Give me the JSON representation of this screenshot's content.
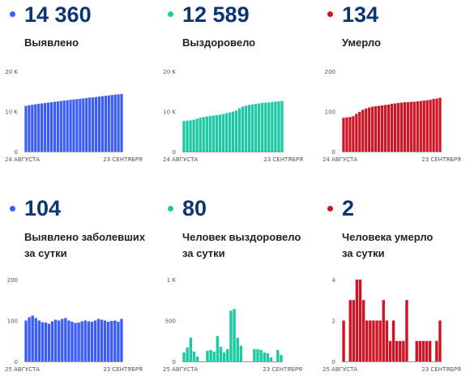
{
  "colors": {
    "blue": "#3c5df5",
    "green": "#1cc9a4",
    "red": "#cc1424",
    "title": "#0e3573",
    "axis": "#777777"
  },
  "panels": [
    {
      "value": "14 360",
      "label_lines": [
        "Выявлено"
      ]
    },
    {
      "value": "12 589",
      "label_lines": [
        "Выздоровело"
      ]
    },
    {
      "value": "134",
      "label_lines": [
        "Умерло"
      ]
    },
    {
      "value": "104",
      "label_lines": [
        "Выявлено заболевших",
        "за сутки"
      ]
    },
    {
      "value": "80",
      "label_lines": [
        "Человек выздоровело",
        "за сутки"
      ]
    },
    {
      "value": "2",
      "label_lines": [
        "Человека умерло",
        "за сутки"
      ]
    }
  ],
  "chart_data": [
    {
      "type": "bar",
      "color": "blue",
      "ymax": 20000,
      "yticks": [
        0,
        10000,
        20000
      ],
      "ytick_labels": [
        "0",
        "10 K",
        "20 K"
      ],
      "x_start": "24 АВГУСТА",
      "x_end": "23 СЕНТЯБРЯ",
      "values": [
        11400,
        11550,
        11650,
        11800,
        11900,
        12000,
        12100,
        12200,
        12300,
        12400,
        12500,
        12600,
        12700,
        12800,
        12900,
        13000,
        13050,
        13150,
        13250,
        13350,
        13450,
        13500,
        13600,
        13700,
        13800,
        13900,
        14000,
        14100,
        14200,
        14260,
        14360
      ]
    },
    {
      "type": "bar",
      "color": "green",
      "ymax": 20000,
      "yticks": [
        0,
        10000,
        20000
      ],
      "ytick_labels": [
        "0",
        "10 K",
        "20 K"
      ],
      "x_start": "24 АВГУСТА",
      "x_end": "23 СЕНТЯБРЯ",
      "values": [
        7600,
        7700,
        7800,
        7950,
        8200,
        8450,
        8600,
        8750,
        8850,
        8950,
        9050,
        9200,
        9350,
        9550,
        9750,
        9950,
        10200,
        10800,
        11200,
        11450,
        11650,
        11750,
        11900,
        12000,
        12150,
        12200,
        12250,
        12350,
        12450,
        12509,
        12589
      ]
    },
    {
      "type": "bar",
      "color": "red",
      "ymax": 200,
      "yticks": [
        0,
        100,
        200
      ],
      "ytick_labels": [
        "0",
        "100",
        "200"
      ],
      "x_start": "24 АВГУСТА",
      "x_end": "23 СЕНТЯБРЯ",
      "values": [
        84,
        85,
        86,
        88,
        94,
        99,
        104,
        107,
        110,
        112,
        113,
        114,
        115,
        116,
        117,
        119,
        120,
        121,
        122,
        123,
        123,
        124,
        124,
        125,
        126,
        127,
        128,
        129,
        131,
        132,
        134
      ]
    },
    {
      "type": "bar",
      "color": "blue",
      "ymax": 200,
      "yticks": [
        0,
        100,
        200
      ],
      "ytick_labels": [
        "0",
        "100",
        "200"
      ],
      "x_start": "25 АВГУСТА",
      "x_end": "23 СЕНТЯБРЯ",
      "values": [
        100,
        108,
        112,
        106,
        100,
        96,
        95,
        92,
        98,
        102,
        100,
        104,
        106,
        100,
        97,
        94,
        95,
        98,
        100,
        98,
        97,
        100,
        104,
        102,
        100,
        97,
        99,
        100,
        97,
        104
      ]
    },
    {
      "type": "bar",
      "color": "green",
      "ymax": 1000,
      "yticks": [
        0,
        500,
        1000
      ],
      "ytick_labels": [
        "0",
        "500",
        "1 K"
      ],
      "x_start": "25 АВГУСТА",
      "x_end": "23 СЕНТЯБРЯ",
      "values": [
        110,
        170,
        290,
        120,
        60,
        0,
        0,
        130,
        140,
        120,
        310,
        180,
        110,
        150,
        620,
        640,
        290,
        190,
        0,
        0,
        0,
        150,
        150,
        140,
        110,
        100,
        50,
        0,
        140,
        80
      ]
    },
    {
      "type": "bar",
      "color": "red",
      "ymax": 4,
      "yticks": [
        0,
        2,
        4
      ],
      "ytick_labels": [
        "0",
        "2",
        "4"
      ],
      "x_start": "25 АВГУСТА",
      "x_end": "23 СЕНТЯБРЯ",
      "values": [
        2,
        0,
        3,
        3,
        4,
        4,
        3,
        2,
        2,
        2,
        2,
        2,
        3,
        2,
        1,
        2,
        1,
        1,
        1,
        3,
        0,
        0,
        1,
        1,
        1,
        1,
        1,
        0,
        1,
        2
      ]
    }
  ]
}
